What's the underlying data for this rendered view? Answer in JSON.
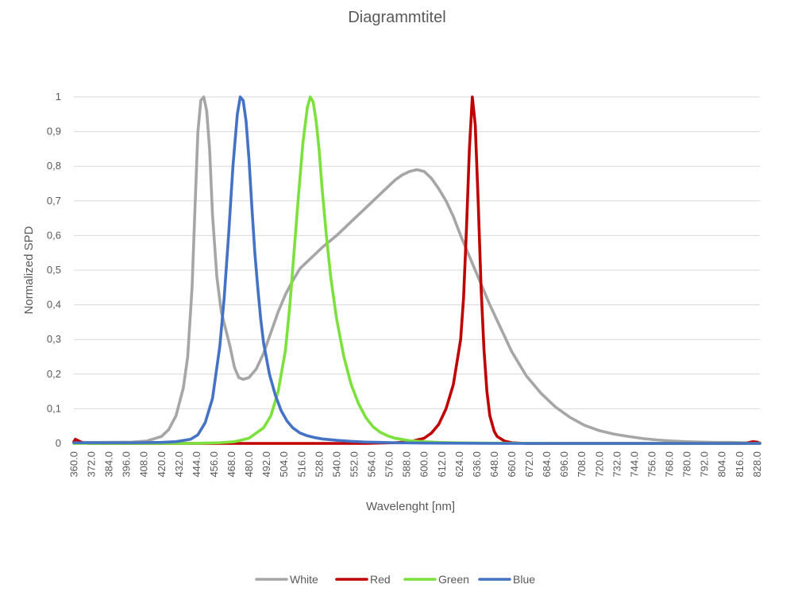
{
  "chart_data": {
    "type": "line",
    "title": "Diagrammtitel",
    "xlabel": "Wavelenght [nm]",
    "ylabel": "Normalized SPD",
    "xlim": [
      360,
      830
    ],
    "ylim": [
      0,
      1
    ],
    "x_tick_labels": [
      "360.0",
      "372.0",
      "384.0",
      "396.0",
      "408.0",
      "420.0",
      "432.0",
      "444.0",
      "456.0",
      "468.0",
      "480.0",
      "492.0",
      "504.0",
      "516.0",
      "528.0",
      "540.0",
      "552.0",
      "564.0",
      "576.0",
      "588.0",
      "600.0",
      "612.0",
      "624.0",
      "636.0",
      "648.0",
      "660.0",
      "672.0",
      "684.0",
      "696.0",
      "708.0",
      "720.0",
      "732.0",
      "744.0",
      "756.0",
      "768.0",
      "780.0",
      "792.0",
      "804.0",
      "816.0",
      "828.0"
    ],
    "y_tick_labels": [
      "0",
      "0,1",
      "0,2",
      "0,3",
      "0,4",
      "0,5",
      "0,6",
      "0,7",
      "0,8",
      "0,9",
      "1"
    ],
    "grid": true,
    "legend_position": "bottom",
    "series": [
      {
        "name": "White",
        "color": "#a6a6a6",
        "x": [
          360,
          380,
          400,
          410,
          420,
          425,
          430,
          435,
          438,
          441,
          443,
          445,
          447,
          449,
          451,
          453,
          455,
          458,
          461,
          464,
          467,
          470,
          473,
          476,
          480,
          485,
          490,
          495,
          500,
          505,
          510,
          515,
          520,
          525,
          530,
          540,
          550,
          560,
          570,
          580,
          585,
          590,
          595,
          600,
          605,
          610,
          615,
          620,
          625,
          630,
          635,
          640,
          645,
          650,
          655,
          660,
          670,
          680,
          690,
          700,
          710,
          720,
          730,
          740,
          750,
          760,
          770,
          780,
          790,
          800,
          810,
          820,
          830
        ],
        "y": [
          0.003,
          0.003,
          0.004,
          0.007,
          0.02,
          0.04,
          0.08,
          0.16,
          0.25,
          0.45,
          0.68,
          0.9,
          0.99,
          1.0,
          0.96,
          0.85,
          0.66,
          0.48,
          0.38,
          0.33,
          0.28,
          0.22,
          0.19,
          0.185,
          0.19,
          0.215,
          0.26,
          0.32,
          0.38,
          0.43,
          0.47,
          0.505,
          0.525,
          0.545,
          0.565,
          0.6,
          0.64,
          0.68,
          0.72,
          0.76,
          0.775,
          0.785,
          0.79,
          0.785,
          0.765,
          0.735,
          0.7,
          0.655,
          0.6,
          0.55,
          0.5,
          0.45,
          0.4,
          0.355,
          0.31,
          0.265,
          0.195,
          0.145,
          0.105,
          0.075,
          0.052,
          0.037,
          0.027,
          0.02,
          0.014,
          0.01,
          0.007,
          0.005,
          0.004,
          0.003,
          0.003,
          0.002,
          0.002
        ]
      },
      {
        "name": "Red",
        "color": "#c00000",
        "x": [
          360,
          361,
          363,
          366,
          370,
          400,
          500,
          560,
          580,
          590,
          600,
          605,
          610,
          615,
          620,
          625,
          627,
          629,
          631,
          633,
          635,
          637,
          639,
          641,
          643,
          645,
          648,
          650,
          655,
          660,
          670,
          700,
          800,
          820,
          825,
          828,
          830
        ],
        "y": [
          0.005,
          0.012,
          0.008,
          0.002,
          0,
          0,
          0,
          0,
          0.002,
          0.005,
          0.015,
          0.03,
          0.055,
          0.1,
          0.17,
          0.3,
          0.42,
          0.62,
          0.85,
          1.0,
          0.92,
          0.7,
          0.45,
          0.27,
          0.15,
          0.08,
          0.035,
          0.02,
          0.007,
          0.002,
          0,
          0,
          0,
          0,
          0.005,
          0.004,
          0
        ]
      },
      {
        "name": "Green",
        "color": "#7ce13c",
        "x": [
          360,
          400,
          440,
          460,
          470,
          480,
          490,
          495,
          500,
          505,
          508,
          511,
          514,
          517,
          520,
          522,
          524,
          526,
          528,
          530,
          533,
          536,
          540,
          545,
          550,
          555,
          560,
          565,
          570,
          575,
          580,
          590,
          600,
          610,
          620,
          640,
          700,
          830
        ],
        "y": [
          0,
          0,
          0,
          0.002,
          0.005,
          0.015,
          0.045,
          0.08,
          0.15,
          0.27,
          0.4,
          0.56,
          0.72,
          0.87,
          0.97,
          1.0,
          0.985,
          0.93,
          0.85,
          0.74,
          0.6,
          0.48,
          0.36,
          0.25,
          0.17,
          0.115,
          0.075,
          0.048,
          0.032,
          0.022,
          0.015,
          0.008,
          0.005,
          0.003,
          0.002,
          0.001,
          0,
          0
        ]
      },
      {
        "name": "Blue",
        "color": "#4472c4",
        "x": [
          360,
          380,
          400,
          420,
          430,
          440,
          445,
          450,
          455,
          460,
          463,
          466,
          469,
          472,
          474,
          476,
          478,
          480,
          482,
          484,
          486,
          488,
          490,
          494,
          498,
          502,
          506,
          510,
          515,
          520,
          525,
          530,
          540,
          550,
          560,
          570,
          580,
          600,
          650,
          700,
          830
        ],
        "y": [
          0.002,
          0.002,
          0.002,
          0.003,
          0.005,
          0.012,
          0.025,
          0.06,
          0.13,
          0.28,
          0.42,
          0.6,
          0.8,
          0.95,
          1.0,
          0.99,
          0.93,
          0.82,
          0.68,
          0.55,
          0.45,
          0.36,
          0.29,
          0.2,
          0.14,
          0.095,
          0.065,
          0.045,
          0.03,
          0.022,
          0.017,
          0.013,
          0.009,
          0.006,
          0.004,
          0.003,
          0.002,
          0.001,
          0,
          0,
          0
        ]
      }
    ]
  }
}
